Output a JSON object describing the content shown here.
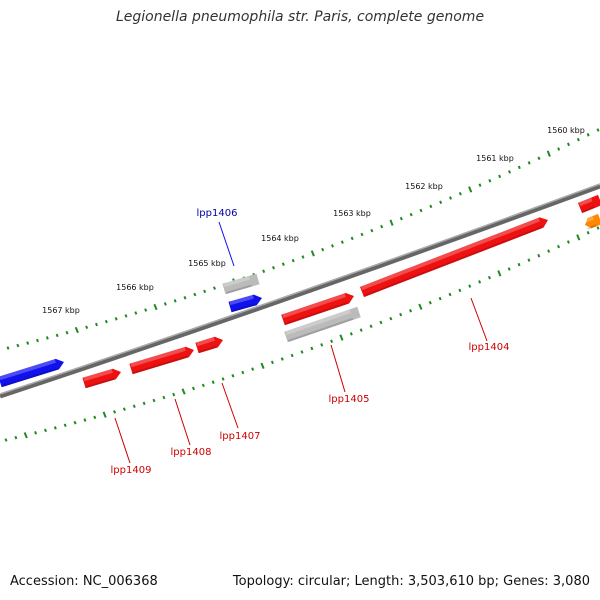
{
  "title": "Legionella pneumophila str. Paris, complete genome",
  "accession": "Accession: NC_006368",
  "summary": "Topology: circular; Length: 3,503,610 bp; Genes: 3,080",
  "colors": {
    "forward_gene": "#ee1111",
    "reverse_gene": "#1111ee",
    "pseudo_gene": "#bbbbbb",
    "other_feature": "#ff8800",
    "backbone": "#777777",
    "ticks": "#228822",
    "forward_label": "#cc0000",
    "reverse_label": "#0000aa"
  },
  "scale_labels": [
    "1560 kbp",
    "1561 kbp",
    "1562 kbp",
    "1563 kbp",
    "1564 kbp",
    "1565 kbp",
    "1566 kbp",
    "1567 kbp"
  ],
  "gene_labels": [
    {
      "id": "lpp1406",
      "text": "lpp1406",
      "strand": "reverse"
    },
    {
      "id": "lpp1404",
      "text": "lpp1404",
      "strand": "forward"
    },
    {
      "id": "lpp1405",
      "text": "lpp1405",
      "strand": "forward"
    },
    {
      "id": "lpp1407",
      "text": "lpp1407",
      "strand": "forward"
    },
    {
      "id": "lpp1408",
      "text": "lpp1408",
      "strand": "forward"
    },
    {
      "id": "lpp1409",
      "text": "lpp1409",
      "strand": "forward"
    }
  ]
}
